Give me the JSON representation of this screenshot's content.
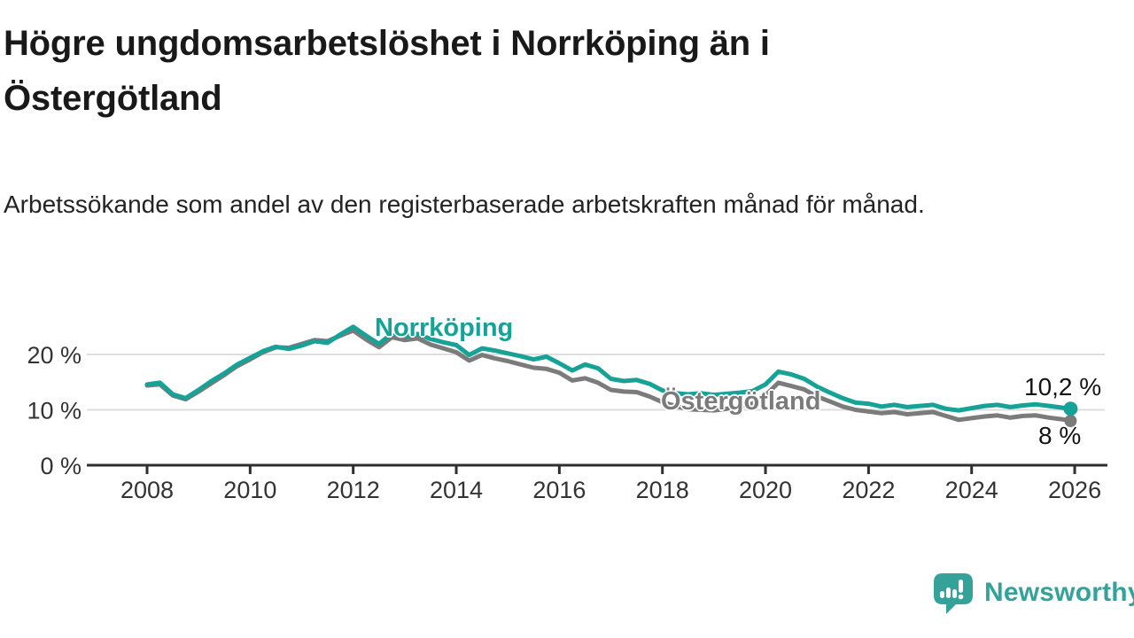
{
  "title": "Högre ungdomsarbetslöshet i Norrköping än i Östergötland",
  "subtitle": "Arbetssökande som andel av den registerbaserade arbetskraften månad för månad.",
  "branding": {
    "name": "Newsworthy",
    "icon": "newsworthy-speech-bubble-bar-chart-icon",
    "color": "#35a29a"
  },
  "chart_data": {
    "type": "line",
    "title": "Högre ungdomsarbetslöshet i Norrköping än i Östergötland",
    "subtitle": "Arbetssökande som andel av den registerbaserade arbetskraften månad för månad.",
    "xlabel": "",
    "ylabel": "",
    "grid": true,
    "legend_position": "inline-labels",
    "x_axis": {
      "ticks": [
        2008,
        2010,
        2012,
        2014,
        2016,
        2018,
        2020,
        2022,
        2024,
        2026
      ],
      "range": [
        2007.7,
        2026.7
      ]
    },
    "y_axis": {
      "ticks": [
        0,
        10,
        20
      ],
      "tick_suffix": " %",
      "range": [
        0,
        31
      ]
    },
    "colors": {
      "grid": "#dedede",
      "axis": "#2f2f2f",
      "tick_label": "#333333"
    },
    "x": [
      2008,
      2008.25,
      2008.5,
      2008.75,
      2009,
      2009.25,
      2009.5,
      2009.75,
      2010,
      2010.25,
      2010.5,
      2010.75,
      2011,
      2011.25,
      2011.5,
      2011.75,
      2012,
      2012.25,
      2012.5,
      2012.75,
      2013,
      2013.25,
      2013.5,
      2013.75,
      2014,
      2014.25,
      2014.5,
      2014.75,
      2015,
      2015.25,
      2015.5,
      2015.75,
      2016,
      2016.25,
      2016.5,
      2016.75,
      2017,
      2017.25,
      2017.5,
      2017.75,
      2018,
      2018.25,
      2018.5,
      2018.75,
      2019,
      2019.25,
      2019.5,
      2019.75,
      2020,
      2020.25,
      2020.5,
      2020.75,
      2021,
      2021.25,
      2021.5,
      2021.75,
      2022,
      2022.25,
      2022.5,
      2022.75,
      2023,
      2023.25,
      2023.5,
      2023.75,
      2024,
      2024.25,
      2024.5,
      2024.75,
      2025,
      2025.25,
      2025.5,
      2025.75,
      2025.92
    ],
    "series": [
      {
        "name": "Östergötland",
        "color": "#7b7b7b",
        "end_label": "8 %",
        "end_value": 8.0,
        "end_dot_radius": 7,
        "values": [
          14.4,
          14.6,
          12.6,
          11.9,
          13.3,
          14.8,
          16.3,
          17.9,
          19.1,
          20.4,
          21.3,
          21.2,
          21.9,
          22.6,
          22.4,
          23.4,
          24.3,
          22.7,
          21.3,
          23.1,
          22.6,
          22.9,
          21.8,
          21.1,
          20.4,
          18.9,
          19.9,
          19.3,
          18.8,
          18.2,
          17.6,
          17.4,
          16.7,
          15.3,
          15.7,
          14.9,
          13.6,
          13.3,
          13.2,
          12.4,
          11.4,
          10.7,
          10.1,
          10.0,
          9.9,
          10.2,
          10.6,
          11.1,
          12.6,
          14.9,
          14.3,
          13.7,
          12.4,
          11.5,
          10.6,
          10.0,
          9.7,
          9.4,
          9.6,
          9.2,
          9.4,
          9.6,
          8.9,
          8.2,
          8.5,
          8.8,
          9.0,
          8.6,
          8.9,
          9.0,
          8.6,
          8.3,
          8.0
        ]
      },
      {
        "name": "Norrköping",
        "color": "#16a296",
        "end_label": "10,2 %",
        "end_value": 10.2,
        "end_dot_radius": 8,
        "values": [
          14.6,
          14.9,
          12.8,
          12.1,
          13.6,
          15.2,
          16.6,
          18.2,
          19.4,
          20.6,
          21.4,
          21.0,
          21.6,
          22.4,
          22.1,
          23.6,
          25.0,
          23.4,
          21.9,
          23.8,
          23.3,
          23.7,
          22.8,
          22.2,
          21.7,
          19.9,
          21.1,
          20.7,
          20.2,
          19.7,
          19.1,
          19.6,
          18.4,
          17.1,
          18.2,
          17.5,
          15.6,
          15.2,
          15.4,
          14.7,
          13.5,
          13.0,
          12.8,
          13.0,
          12.7,
          12.9,
          13.1,
          13.4,
          14.6,
          16.9,
          16.4,
          15.6,
          14.2,
          13.1,
          12.1,
          11.3,
          11.1,
          10.6,
          10.9,
          10.5,
          10.7,
          10.9,
          10.2,
          9.9,
          10.3,
          10.7,
          10.9,
          10.5,
          10.8,
          11.0,
          10.7,
          10.4,
          10.2
        ]
      }
    ]
  }
}
